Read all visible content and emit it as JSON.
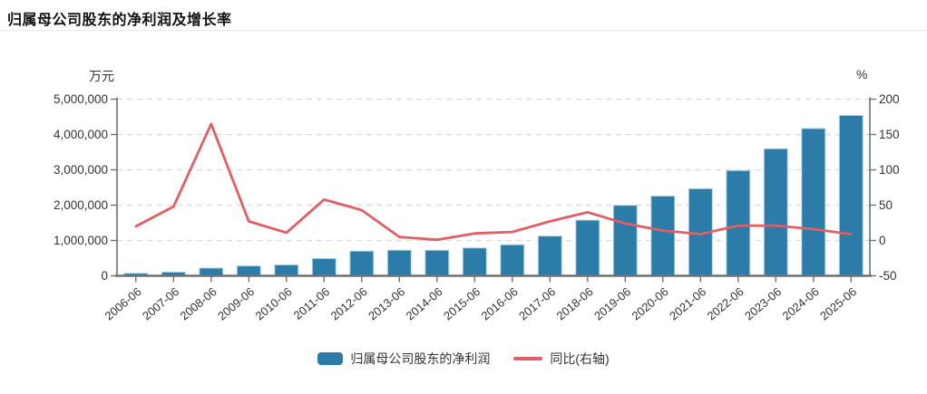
{
  "page": {
    "title": "归属母公司股东的净利润及增长率"
  },
  "axes": {
    "left_unit": "万元",
    "right_unit": "%",
    "left_tick_labels": [
      "5,000,000",
      "4,000,000",
      "3,000,000",
      "2,000,000",
      "1,000,000",
      "0"
    ],
    "right_tick_labels": [
      "200",
      "150",
      "100",
      "50",
      "0",
      "-50"
    ]
  },
  "colors": {
    "bar": "#2b7ca9",
    "bar_edge": "#b7d7e6",
    "line": "#e15f63",
    "axis": "#707070",
    "grid": "#d9d9d9",
    "tick_text": "#333333"
  },
  "chart_data": {
    "type": "bar",
    "title": "归属母公司股东的净利润及增长率",
    "categories": [
      "2006-06",
      "2007-06",
      "2008-06",
      "2009-06",
      "2010-06",
      "2011-06",
      "2012-06",
      "2013-06",
      "2014-06",
      "2015-06",
      "2016-06",
      "2017-06",
      "2018-06",
      "2019-06",
      "2020-06",
      "2021-06",
      "2022-06",
      "2023-06",
      "2024-06",
      "2025-06"
    ],
    "series": [
      {
        "name": "归属母公司股东的净利润",
        "type": "bar",
        "axis": "left",
        "unit": "万元",
        "values": [
          70700,
          104700,
          220600,
          279000,
          310600,
          490700,
          699600,
          724800,
          723100,
          788800,
          880000,
          1125000,
          1576000,
          1995100,
          2260200,
          2465400,
          2979400,
          3598000,
          4169600,
          4540300
        ]
      },
      {
        "name": "同比(右轴)",
        "type": "line",
        "axis": "right",
        "unit": "%",
        "values": [
          20,
          48,
          165,
          27,
          11,
          58,
          43,
          5,
          1,
          10,
          12,
          27,
          40,
          24,
          14,
          9,
          21,
          21,
          16,
          9
        ]
      }
    ],
    "left_axis": {
      "label": "万元",
      "min": 0,
      "max": 5000000,
      "step": 1000000
    },
    "right_axis": {
      "label": "%",
      "min": -50,
      "max": 200,
      "step": 50
    },
    "grid": "horizontal dashed",
    "legend_position": "bottom-center",
    "xlabel": "",
    "ylabel": "万元"
  }
}
